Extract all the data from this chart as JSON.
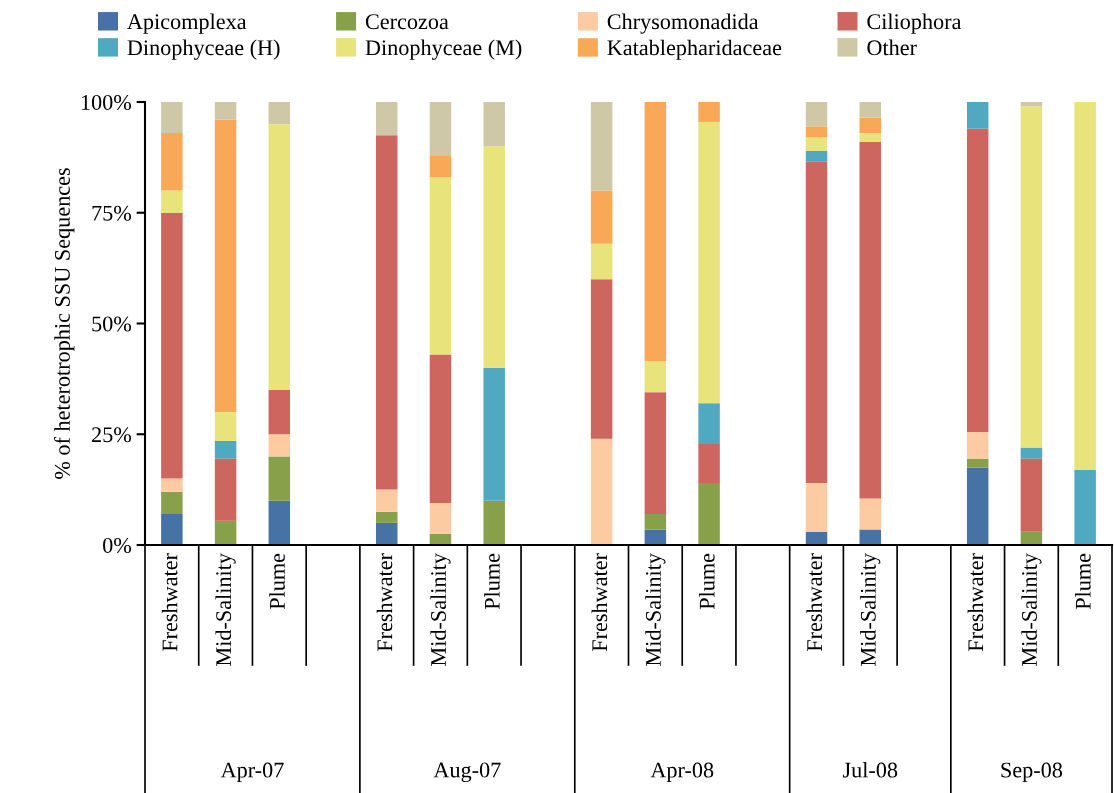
{
  "chart_data": {
    "type": "bar",
    "stacked": true,
    "ylabel": "% of heterotrophic SSU Sequences",
    "categories": [
      "Freshwater",
      "Mid-Salinity",
      "Plume",
      null,
      "Freshwater",
      "Mid-Salinity",
      "Plume",
      null,
      "Freshwater",
      "Mid-Salinity",
      "Plume",
      null,
      "Freshwater",
      "Mid-Salinity",
      null,
      "Freshwater",
      "Mid-Salinity",
      "Plume"
    ],
    "annotations": [
      "Apr-07",
      "Aug-07",
      "Apr-08",
      "Jul-08",
      "Sep-08"
    ],
    "series": [
      {
        "name": "Apicomplexa",
        "color": "#4672a5",
        "values": [
          7,
          0,
          10,
          null,
          5,
          0,
          0,
          null,
          0,
          3.5,
          0,
          null,
          3,
          3.5,
          null,
          17.5,
          0,
          0
        ]
      },
      {
        "name": "Cercozoa",
        "color": "#89a04b",
        "values": [
          5,
          5.5,
          10,
          null,
          2.5,
          2.5,
          10,
          null,
          0,
          3.5,
          14,
          null,
          0,
          0,
          null,
          2,
          3,
          0
        ]
      },
      {
        "name": "Chrysomonadida",
        "color": "#fccba1",
        "values": [
          3,
          0,
          5,
          null,
          5,
          7,
          0,
          null,
          24,
          0,
          0,
          null,
          11,
          7,
          null,
          6,
          0,
          0
        ]
      },
      {
        "name": "Ciliophora",
        "color": "#cd665f",
        "values": [
          60,
          14,
          10,
          null,
          80,
          33.5,
          0,
          null,
          36,
          27.5,
          9,
          null,
          72.5,
          80.5,
          null,
          68.5,
          16.5,
          0
        ]
      },
      {
        "name": "Dinophyceae (H)",
        "color": "#50a8c1",
        "values": [
          0,
          4,
          0,
          null,
          0,
          0,
          30,
          null,
          0,
          0,
          9,
          null,
          2.5,
          0,
          null,
          6,
          2.5,
          17
        ]
      },
      {
        "name": "Dinophyceae (M)",
        "color": "#e9e37b",
        "values": [
          5,
          6.5,
          60,
          null,
          0,
          40,
          50,
          null,
          8,
          7,
          63.5,
          null,
          3,
          2,
          null,
          0,
          77,
          83
        ]
      },
      {
        "name": "Katablepharidaceae",
        "color": "#f9a858",
        "values": [
          13,
          66,
          0,
          null,
          0,
          5,
          0,
          null,
          12,
          58.5,
          4.5,
          null,
          2.5,
          3.5,
          null,
          0,
          0,
          0
        ]
      },
      {
        "name": "Other",
        "color": "#cfc8a6",
        "values": [
          7,
          4,
          5,
          null,
          7.5,
          12,
          10,
          null,
          20,
          0,
          0,
          null,
          5.5,
          3.5,
          null,
          0,
          1,
          0
        ]
      }
    ],
    "ylim": [
      0,
      100
    ],
    "yticks": [
      {
        "value": 0,
        "label": "0%"
      },
      {
        "value": 25,
        "label": "25%"
      },
      {
        "value": 50,
        "label": "50%"
      },
      {
        "value": 75,
        "label": "75%"
      },
      {
        "value": 100,
        "label": "100%"
      }
    ],
    "grid": false,
    "legend": "top"
  }
}
